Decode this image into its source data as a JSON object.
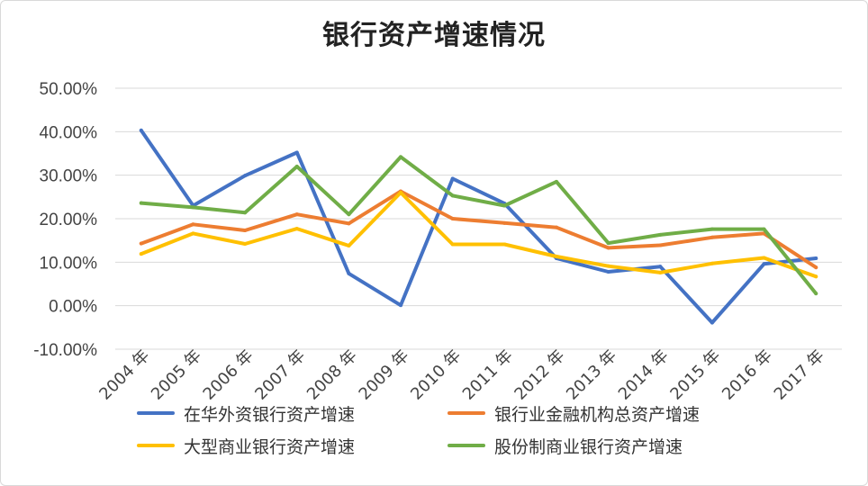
{
  "chart_data": {
    "type": "line",
    "title": "银行资产增速情况",
    "xlabel": "",
    "ylabel": "",
    "ylim": [
      -10,
      50
    ],
    "yticks": [
      "50.00%",
      "40.00%",
      "30.00%",
      "20.00%",
      "10.00%",
      "0.00%",
      "-10.00%"
    ],
    "ytick_values": [
      50,
      40,
      30,
      20,
      10,
      0,
      -10
    ],
    "categories": [
      "2004 年",
      "2005 年",
      "2006 年",
      "2007 年",
      "2008 年",
      "2009 年",
      "2010 年",
      "2011 年",
      "2012 年",
      "2013 年",
      "2014 年",
      "2015 年",
      "2016 年",
      "2017 年"
    ],
    "grid": true,
    "legend_position": "bottom",
    "series": [
      {
        "name": "在华外资银行资产增速",
        "color": "#4472c4",
        "values": [
          40.3,
          23.0,
          29.9,
          35.2,
          7.4,
          0.1,
          29.2,
          23.5,
          10.9,
          7.8,
          9.0,
          -3.9,
          9.6,
          10.9
        ]
      },
      {
        "name": "银行业金融机构总资产增速",
        "color": "#ed7d31",
        "values": [
          14.3,
          18.7,
          17.3,
          21.0,
          18.9,
          26.3,
          20.0,
          19.0,
          18.0,
          13.3,
          13.9,
          15.7,
          16.6,
          8.8
        ]
      },
      {
        "name": "大型商业银行资产增速",
        "color": "#ffc000",
        "values": [
          11.9,
          16.6,
          14.2,
          17.7,
          13.8,
          26.0,
          14.1,
          14.1,
          11.3,
          9.1,
          7.6,
          9.7,
          11.0,
          6.7
        ]
      },
      {
        "name": "股份制商业银行资产增速",
        "color": "#70ad47",
        "values": [
          23.6,
          22.6,
          21.4,
          32.0,
          21.0,
          34.2,
          25.3,
          23.0,
          28.5,
          14.4,
          16.3,
          17.6,
          17.6,
          2.8
        ]
      }
    ]
  }
}
